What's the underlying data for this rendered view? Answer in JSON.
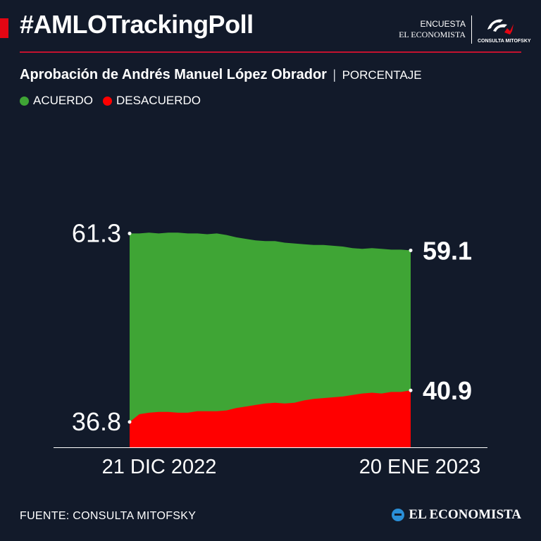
{
  "header": {
    "hashtag": "#AMLOTrackingPoll",
    "brand_line1": "ENCUESTA",
    "brand_line2": "EL ECONOMISTA",
    "partner_logo_text": "CONSULTA MITOFSKY"
  },
  "subtitle": {
    "main": "Aprobación de Andrés Manuel López Obrador",
    "separator": "|",
    "unit": "PORCENTAJE"
  },
  "legend": [
    {
      "label": "ACUERDO",
      "color": "#3fa535"
    },
    {
      "label": "DESACUERDO",
      "color": "#ff0000"
    }
  ],
  "chart_data": {
    "type": "area",
    "x_start_label": "21 DIC 2022",
    "x_end_label": "20 ENE 2023",
    "series": [
      {
        "name": "ACUERDO",
        "color": "#3fa535",
        "start_label": "61.3",
        "end_label": "59.1",
        "values": [
          61.3,
          61.3,
          61.4,
          61.3,
          61.4,
          61.4,
          61.3,
          61.3,
          61.2,
          61.3,
          61.1,
          60.8,
          60.6,
          60.4,
          60.3,
          60.3,
          60.1,
          60.0,
          59.9,
          59.8,
          59.8,
          59.7,
          59.6,
          59.4,
          59.3,
          59.4,
          59.3,
          59.2,
          59.2,
          59.1
        ]
      },
      {
        "name": "DESACUERDO",
        "color": "#ff0000",
        "start_label": "36.8",
        "end_label": "40.9",
        "values": [
          36.8,
          37.8,
          38.0,
          38.1,
          38.1,
          38.0,
          38.0,
          38.2,
          38.2,
          38.2,
          38.3,
          38.6,
          38.8,
          39.0,
          39.2,
          39.3,
          39.2,
          39.3,
          39.6,
          39.8,
          39.9,
          40.0,
          40.1,
          40.3,
          40.5,
          40.6,
          40.5,
          40.7,
          40.7,
          40.9
        ]
      }
    ],
    "ylim": [
      33.5,
      62.0
    ]
  },
  "footer": {
    "source": "FUENTE: CONSULTA MITOFSKY",
    "logo_text": "EL ECONOMISTA"
  }
}
